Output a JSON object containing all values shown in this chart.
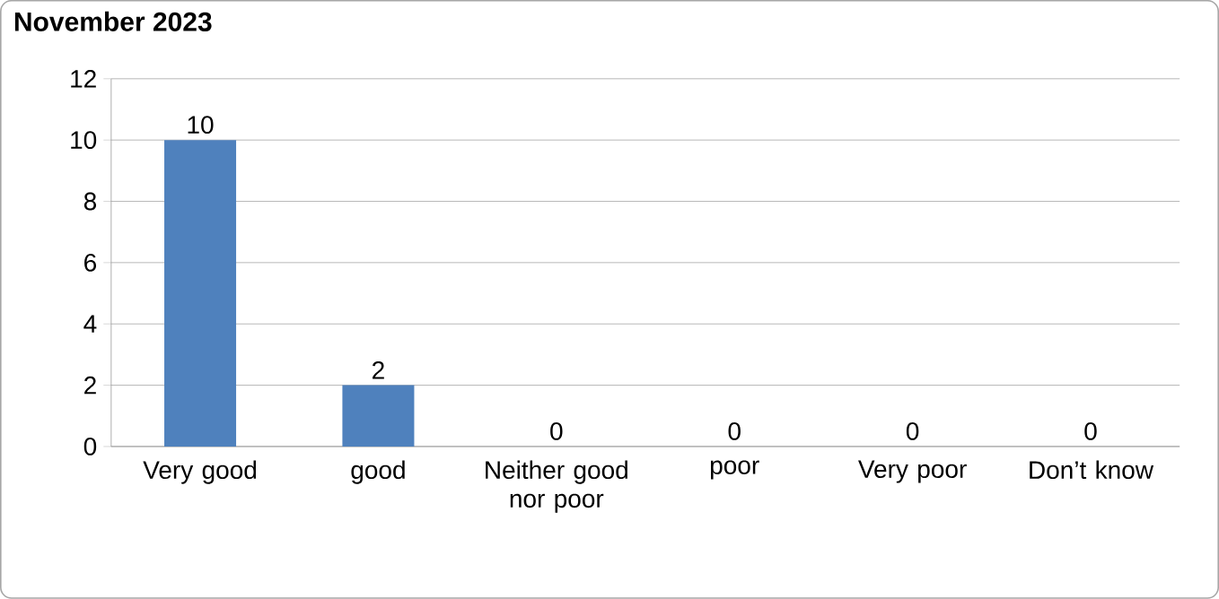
{
  "chart_data": {
    "type": "bar",
    "title": "November 2023",
    "categories": [
      "Very good",
      "good",
      "Neither good nor poor",
      "poor",
      "Very poor",
      "Don’t know"
    ],
    "values": [
      10,
      2,
      0,
      0,
      0,
      0
    ],
    "color": "#4f81bd",
    "ylim": [
      0,
      12
    ],
    "yticks": [
      0,
      2,
      4,
      6,
      8,
      10,
      12
    ],
    "grid": "y",
    "data_labels": true
  }
}
